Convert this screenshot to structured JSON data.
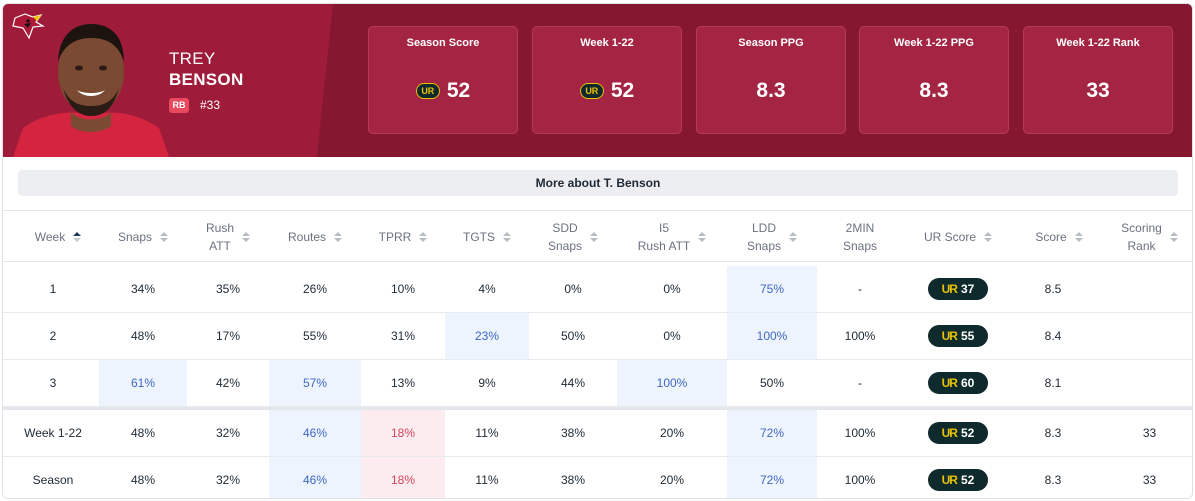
{
  "player": {
    "first_name": "TREY",
    "last_name": "BENSON",
    "position": "RB",
    "number": "#33"
  },
  "colors": {
    "team_primary": "#9e1b3a",
    "team_dark": "#861730",
    "ur_dark": "#0f2a2d",
    "ur_accent": "#e8c100"
  },
  "stats": [
    {
      "label": "Season Score",
      "value": "52",
      "ur_logo": true
    },
    {
      "label": "Week 1-22",
      "value": "52",
      "ur_logo": true
    },
    {
      "label": "Season PPG",
      "value": "8.3",
      "ur_logo": false
    },
    {
      "label": "Week 1-22 PPG",
      "value": "8.3",
      "ur_logo": false
    },
    {
      "label": "Week 1-22 Rank",
      "value": "33",
      "ur_logo": false
    }
  ],
  "more_button": "More about T. Benson",
  "ur_mark": "UR",
  "table": {
    "columns": [
      {
        "l1": "Week",
        "l2": ""
      },
      {
        "l1": "Snaps",
        "l2": ""
      },
      {
        "l1": "Rush",
        "l2": "ATT"
      },
      {
        "l1": "Routes",
        "l2": ""
      },
      {
        "l1": "TPRR",
        "l2": ""
      },
      {
        "l1": "TGTS",
        "l2": ""
      },
      {
        "l1": "SDD",
        "l2": "Snaps"
      },
      {
        "l1": "I5",
        "l2": "Rush ATT"
      },
      {
        "l1": "LDD",
        "l2": "Snaps"
      },
      {
        "l1": "2MIN",
        "l2": "Snaps"
      },
      {
        "l1": "UR Score",
        "l2": ""
      },
      {
        "l1": "Score",
        "l2": ""
      },
      {
        "l1": "Scoring",
        "l2": "Rank"
      }
    ],
    "rows": [
      {
        "week": "1",
        "snaps": "34%",
        "rush_att": "35%",
        "routes": "26%",
        "tprr": "10%",
        "tgts": "4%",
        "sdd": "0%",
        "i5": "0%",
        "ldd": "75%",
        "two_min": "-",
        "ur": "37",
        "score": "8.5",
        "rank": ""
      },
      {
        "week": "2",
        "snaps": "48%",
        "rush_att": "17%",
        "routes": "55%",
        "tprr": "31%",
        "tgts": "23%",
        "sdd": "50%",
        "i5": "0%",
        "ldd": "100%",
        "two_min": "100%",
        "ur": "55",
        "score": "8.4",
        "rank": ""
      },
      {
        "week": "3",
        "snaps": "61%",
        "rush_att": "42%",
        "routes": "57%",
        "tprr": "13%",
        "tgts": "9%",
        "sdd": "44%",
        "i5": "100%",
        "ldd": "50%",
        "two_min": "-",
        "ur": "60",
        "score": "8.1",
        "rank": ""
      },
      {
        "week": "Week 1-22",
        "snaps": "48%",
        "rush_att": "32%",
        "routes": "46%",
        "tprr": "18%",
        "tgts": "11%",
        "sdd": "38%",
        "i5": "20%",
        "ldd": "72%",
        "two_min": "100%",
        "ur": "52",
        "score": "8.3",
        "rank": "33"
      },
      {
        "week": "Season",
        "snaps": "48%",
        "rush_att": "32%",
        "routes": "46%",
        "tprr": "18%",
        "tgts": "11%",
        "sdd": "38%",
        "i5": "20%",
        "ldd": "72%",
        "two_min": "100%",
        "ur": "52",
        "score": "8.3",
        "rank": "33"
      }
    ]
  }
}
